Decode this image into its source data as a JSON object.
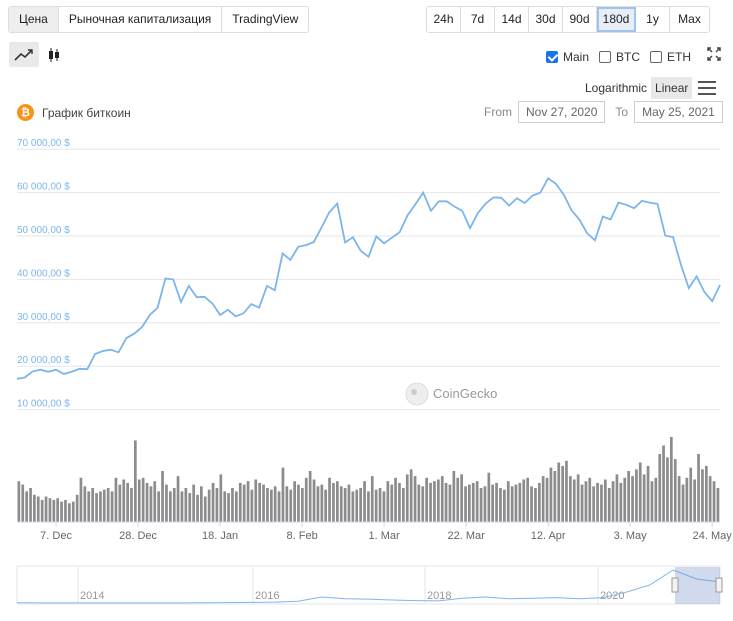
{
  "tabs": [
    "Цена",
    "Рыночная капитализация",
    "TradingView"
  ],
  "ranges": [
    "24h",
    "7d",
    "14d",
    "30d",
    "90d",
    "180d",
    "1y",
    "Max"
  ],
  "active_range": "180d",
  "chart_types": {
    "line": "line-chart-icon",
    "candle": "candlestick-icon"
  },
  "toggles": [
    {
      "label": "Main",
      "checked": true
    },
    {
      "label": "BTC",
      "checked": false
    },
    {
      "label": "ETH",
      "checked": false
    }
  ],
  "scale": {
    "log": "Logarithmic",
    "linear": "Linear",
    "active": "Linear"
  },
  "chart_title": "График биткоин",
  "date_range": {
    "from_label": "From",
    "from": "Nov 27, 2020",
    "to_label": "To",
    "to": "May 25, 2021"
  },
  "watermark": "CoinGecko",
  "colors": {
    "line": "#7cb5ec",
    "volume": "#8c8c8c",
    "accent": "#1a73e8",
    "btc": "#f7931a"
  },
  "chart_data": {
    "type": "line",
    "ylim": [
      0,
      70000
    ],
    "ytick_values": [
      10000,
      20000,
      30000,
      40000,
      50000,
      60000,
      70000
    ],
    "ytick_labels": [
      "10 000,00 $",
      "20 000,00 $",
      "30 000,00 $",
      "40 000,00 $",
      "50 000,00 $",
      "60 000,00 $",
      "70 000,00 $"
    ],
    "xtick_labels": [
      "7. Dec",
      "28. Dec",
      "18. Jan",
      "8. Feb",
      "1. Mar",
      "22. Mar",
      "12. Apr",
      "3. May",
      "24. May"
    ],
    "xtick_days": [
      10,
      31,
      52,
      73,
      94,
      115,
      136,
      157,
      178
    ],
    "price_days": [
      0,
      2,
      4,
      6,
      8,
      10,
      12,
      14,
      16,
      18,
      20,
      22,
      24,
      26,
      28,
      30,
      32,
      34,
      36,
      38,
      40,
      42,
      44,
      46,
      48,
      50,
      52,
      54,
      56,
      58,
      60,
      62,
      64,
      66,
      68,
      70,
      72,
      74,
      76,
      78,
      80,
      82,
      84,
      86,
      88,
      90,
      92,
      94,
      96,
      98,
      100,
      102,
      104,
      106,
      108,
      110,
      112,
      114,
      116,
      118,
      120,
      122,
      124,
      126,
      128,
      130,
      132,
      134,
      136,
      138,
      140,
      142,
      144,
      146,
      148,
      150,
      152,
      154,
      156,
      158,
      160,
      162,
      164,
      166,
      168,
      170,
      172,
      174,
      176,
      178,
      180
    ],
    "prices": [
      17100,
      17400,
      18800,
      19200,
      18700,
      19200,
      18200,
      18700,
      19400,
      19300,
      22800,
      23500,
      23800,
      23200,
      26500,
      27500,
      29000,
      31800,
      33500,
      40200,
      40000,
      34800,
      38500,
      35900,
      36000,
      34500,
      31800,
      33000,
      31500,
      32200,
      34300,
      33500,
      38500,
      37500,
      46000,
      44500,
      47500,
      47900,
      48600,
      52000,
      55500,
      57500,
      48500,
      49700,
      46600,
      45200,
      49900,
      48300,
      49600,
      50900,
      54800,
      57300,
      60000,
      55800,
      58000,
      58000,
      56800,
      55800,
      51800,
      55300,
      57500,
      58900,
      58800,
      57000,
      58700,
      57600,
      59300,
      60000,
      63300,
      62000,
      59500,
      55900,
      53800,
      50600,
      49000,
      54500,
      53800,
      57700,
      57200,
      56400,
      58100,
      57700,
      57400,
      50100,
      49700,
      43400,
      38000,
      40700,
      37100,
      35000,
      38700
    ],
    "volumes": [
      24,
      22,
      18,
      20,
      16,
      15,
      13,
      15,
      14,
      13,
      14,
      12,
      13,
      11,
      12,
      16,
      26,
      21,
      18,
      20,
      17,
      18,
      19,
      20,
      18,
      26,
      22,
      25,
      23,
      20,
      48,
      25,
      26,
      23,
      21,
      24,
      18,
      30,
      22,
      18,
      20,
      27,
      18,
      20,
      17,
      22,
      16,
      21,
      15,
      19,
      23,
      20,
      28,
      18,
      17,
      20,
      18,
      23,
      22,
      24,
      19,
      25,
      23,
      22,
      20,
      19,
      21,
      18,
      32,
      21,
      19,
      24,
      22,
      20,
      26,
      30,
      25,
      21,
      22,
      19,
      26,
      23,
      24,
      21,
      20,
      22,
      18,
      19,
      20,
      24,
      18,
      27,
      19,
      20,
      18,
      24,
      22,
      26,
      23,
      20,
      28,
      31,
      27,
      22,
      21,
      26,
      23,
      24,
      25,
      27,
      23,
      22,
      30,
      26,
      28,
      21,
      22,
      23,
      24,
      20,
      21,
      29,
      22,
      23,
      20,
      19,
      24,
      21,
      22,
      23,
      25,
      26,
      21,
      20,
      23,
      27,
      26,
      32,
      30,
      35,
      33,
      36,
      27,
      25,
      28,
      22,
      24,
      26,
      21,
      23,
      22,
      25,
      20,
      24,
      28,
      23,
      26,
      30,
      27,
      31,
      35,
      28,
      33,
      24,
      26,
      40,
      45,
      38,
      50,
      37,
      27,
      22,
      26,
      32,
      25,
      40,
      31,
      33,
      27,
      24,
      20
    ],
    "navigator": {
      "year_labels": [
        "2014",
        "2016",
        "2018",
        "2020"
      ],
      "year_positions": [
        78,
        253,
        425,
        598
      ],
      "history": [
        0.3,
        0.25,
        0.2,
        0.22,
        0.18,
        0.2,
        0.2,
        0.25,
        0.3,
        0.6,
        1.0,
        1.5,
        3.0,
        10,
        7,
        6.5,
        5,
        4,
        3.5,
        8,
        10,
        7,
        8,
        9,
        7,
        9,
        18,
        30,
        55,
        40,
        35
      ]
    }
  }
}
